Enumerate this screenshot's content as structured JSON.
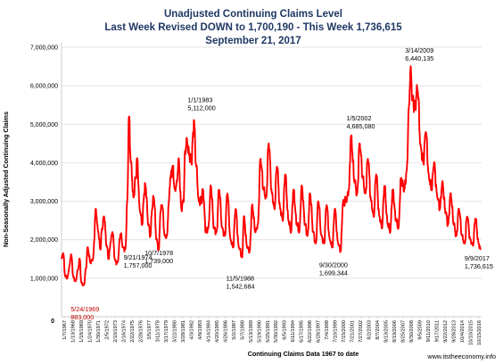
{
  "chart_data": {
    "type": "line",
    "title_lines": [
      "Unadjusted Continuing Claims Level",
      "Last Week Revised DOWN to 1,700,190 - This Week 1,736,615",
      "September 21, 2017"
    ],
    "ylabel": "Non-Seasonally Adjusted Continuing Claims",
    "xlabel": "Continuing Claims Data 1967 to date",
    "ylim": [
      0,
      7000000
    ],
    "xlim": [
      1967.0,
      2017.8
    ],
    "y_ticks": [
      "0",
      "1,000,000",
      "2,000,000",
      "3,000,000",
      "4,000,000",
      "5,000,000",
      "6,000,000",
      "7,000,000"
    ],
    "x_ticks": [
      "1/7/1967",
      "1/13/1968",
      "1/18/1969",
      "1/24/1970",
      "1/30/1971",
      "2/5/1972",
      "2/10/1973",
      "2/16/1974",
      "2/22/1975",
      "2/28/1976",
      "3/5/1977",
      "3/11/1978",
      "3/17/1979",
      "3/22/1980",
      "3/28/1981",
      "4/3/1982",
      "4/9/1983",
      "4/14/1984",
      "4/20/1985",
      "4/26/1986",
      "5/2/1987",
      "5/7/1988",
      "5/13/1989",
      "5/19/1990",
      "5/25/1991",
      "5/30/1992",
      "6/5/1993",
      "6/11/1994",
      "6/17/1995",
      "6/22/1996",
      "6/28/1997",
      "7/4/1998",
      "7/10/1999",
      "7/15/2000",
      "7/21/2001",
      "7/27/2002",
      "8/2/2003",
      "8/7/2004",
      "8/13/2005",
      "8/19/2006",
      "8/25/2007",
      "8/30/2008",
      "9/5/2009",
      "9/11/2010",
      "9/17/2011",
      "9/22/2012",
      "9/28/2013",
      "10/4/2014",
      "10/10/2015",
      "10/15/2016"
    ],
    "grid": true,
    "legend": "none",
    "series_color": "#ff0000",
    "series": [
      {
        "values": [
          [
            1967.0,
            1500000
          ],
          [
            1967.2,
            1650000
          ],
          [
            1967.45,
            1050000
          ],
          [
            1967.7,
            1000000
          ],
          [
            1967.95,
            1300000
          ],
          [
            1968.15,
            1620000
          ],
          [
            1968.45,
            1020000
          ],
          [
            1968.7,
            920000
          ],
          [
            1968.95,
            1200000
          ],
          [
            1969.2,
            1500000
          ],
          [
            1969.4,
            883000
          ],
          [
            1969.7,
            820000
          ],
          [
            1969.95,
            1250000
          ],
          [
            1970.15,
            1800000
          ],
          [
            1970.5,
            1400000
          ],
          [
            1970.8,
            1500000
          ],
          [
            1971.15,
            2800000
          ],
          [
            1971.4,
            2250000
          ],
          [
            1971.7,
            1750000
          ],
          [
            1971.9,
            2300000
          ],
          [
            1972.15,
            2600000
          ],
          [
            1972.45,
            1850000
          ],
          [
            1972.7,
            1500000
          ],
          [
            1972.95,
            1950000
          ],
          [
            1973.15,
            2200000
          ],
          [
            1973.5,
            1450000
          ],
          [
            1973.75,
            1400000
          ],
          [
            1974.15,
            2150000
          ],
          [
            1974.45,
            1800000
          ],
          [
            1974.72,
            1757000
          ],
          [
            1974.95,
            3000000
          ],
          [
            1975.15,
            5200000
          ],
          [
            1975.4,
            4000000
          ],
          [
            1975.7,
            3100000
          ],
          [
            1975.95,
            3600000
          ],
          [
            1976.15,
            4100000
          ],
          [
            1976.45,
            2800000
          ],
          [
            1976.75,
            2400000
          ],
          [
            1977.0,
            3200000
          ],
          [
            1977.15,
            3400000
          ],
          [
            1977.5,
            2400000
          ],
          [
            1977.75,
            2100000
          ],
          [
            1977.95,
            2800000
          ],
          [
            1978.15,
            3100000
          ],
          [
            1978.5,
            2000000
          ],
          [
            1978.77,
            1739000
          ],
          [
            1978.95,
            2700000
          ],
          [
            1979.15,
            2900000
          ],
          [
            1979.5,
            2100000
          ],
          [
            1979.75,
            2100000
          ],
          [
            1979.95,
            2900000
          ],
          [
            1980.15,
            3600000
          ],
          [
            1980.45,
            3900000
          ],
          [
            1980.7,
            3300000
          ],
          [
            1980.95,
            3500000
          ],
          [
            1981.15,
            4100000
          ],
          [
            1981.5,
            2800000
          ],
          [
            1981.75,
            3000000
          ],
          [
            1981.95,
            4300000
          ],
          [
            1982.15,
            4600000
          ],
          [
            1982.45,
            4200000
          ],
          [
            1982.7,
            4000000
          ],
          [
            1982.95,
            4800000
          ],
          [
            1983.0,
            5112000
          ],
          [
            1983.3,
            3900000
          ],
          [
            1983.6,
            3000000
          ],
          [
            1983.9,
            3000000
          ],
          [
            1984.1,
            3300000
          ],
          [
            1984.45,
            2200000
          ],
          [
            1984.75,
            2300000
          ],
          [
            1985.05,
            3400000
          ],
          [
            1985.45,
            2300000
          ],
          [
            1985.75,
            2200000
          ],
          [
            1986.05,
            3300000
          ],
          [
            1986.45,
            2300000
          ],
          [
            1986.75,
            2100000
          ],
          [
            1987.05,
            3200000
          ],
          [
            1987.45,
            2000000
          ],
          [
            1987.75,
            1800000
          ],
          [
            1988.05,
            2800000
          ],
          [
            1988.45,
            1800000
          ],
          [
            1988.85,
            1542684
          ],
          [
            1989.05,
            2600000
          ],
          [
            1989.45,
            1800000
          ],
          [
            1989.75,
            1700000
          ],
          [
            1990.05,
            2900000
          ],
          [
            1990.45,
            2200000
          ],
          [
            1990.75,
            2400000
          ],
          [
            1991.05,
            4100000
          ],
          [
            1991.45,
            3300000
          ],
          [
            1991.75,
            3100000
          ],
          [
            1992.05,
            4500000
          ],
          [
            1992.45,
            3200000
          ],
          [
            1992.75,
            2800000
          ],
          [
            1993.05,
            3900000
          ],
          [
            1993.45,
            2800000
          ],
          [
            1993.75,
            2500000
          ],
          [
            1994.05,
            3700000
          ],
          [
            1994.45,
            2500000
          ],
          [
            1994.75,
            2200000
          ],
          [
            1995.05,
            3300000
          ],
          [
            1995.45,
            2400000
          ],
          [
            1995.75,
            2200000
          ],
          [
            1996.05,
            3400000
          ],
          [
            1996.45,
            2400000
          ],
          [
            1996.75,
            2100000
          ],
          [
            1997.05,
            3200000
          ],
          [
            1997.45,
            2200000
          ],
          [
            1997.75,
            1900000
          ],
          [
            1998.05,
            3000000
          ],
          [
            1998.45,
            2100000
          ],
          [
            1998.75,
            1900000
          ],
          [
            1999.05,
            2900000
          ],
          [
            1999.45,
            2000000
          ],
          [
            1999.75,
            1800000
          ],
          [
            2000.05,
            2800000
          ],
          [
            2000.45,
            1900000
          ],
          [
            2000.75,
            1699344
          ],
          [
            2001.05,
            3000000
          ],
          [
            2001.45,
            3000000
          ],
          [
            2001.75,
            3300000
          ],
          [
            2002.0,
            4685080
          ],
          [
            2002.45,
            3500000
          ],
          [
            2002.75,
            3200000
          ],
          [
            2003.05,
            4500000
          ],
          [
            2003.45,
            3600000
          ],
          [
            2003.75,
            3200000
          ],
          [
            2004.05,
            4100000
          ],
          [
            2004.45,
            3000000
          ],
          [
            2004.75,
            2600000
          ],
          [
            2005.05,
            3700000
          ],
          [
            2005.45,
            2600000
          ],
          [
            2005.75,
            2300000
          ],
          [
            2006.05,
            3400000
          ],
          [
            2006.45,
            2400000
          ],
          [
            2006.75,
            2200000
          ],
          [
            2007.05,
            3300000
          ],
          [
            2007.45,
            2500000
          ],
          [
            2007.75,
            2300000
          ],
          [
            2008.05,
            3600000
          ],
          [
            2008.45,
            3300000
          ],
          [
            2008.75,
            3800000
          ],
          [
            2009.0,
            5400000
          ],
          [
            2009.2,
            6440135
          ],
          [
            2009.45,
            5700000
          ],
          [
            2009.75,
            5500000
          ],
          [
            2010.05,
            5900000
          ],
          [
            2010.45,
            4400000
          ],
          [
            2010.75,
            4000000
          ],
          [
            2011.05,
            4800000
          ],
          [
            2011.45,
            3600000
          ],
          [
            2011.75,
            3300000
          ],
          [
            2012.05,
            4000000
          ],
          [
            2012.45,
            3100000
          ],
          [
            2012.75,
            2800000
          ],
          [
            2013.05,
            3500000
          ],
          [
            2013.45,
            2700000
          ],
          [
            2013.75,
            2400000
          ],
          [
            2014.05,
            3200000
          ],
          [
            2014.45,
            2400000
          ],
          [
            2014.75,
            2100000
          ],
          [
            2015.05,
            2800000
          ],
          [
            2015.45,
            2100000
          ],
          [
            2015.75,
            1900000
          ],
          [
            2016.05,
            2600000
          ],
          [
            2016.45,
            2000000
          ],
          [
            2016.75,
            1850000
          ],
          [
            2017.05,
            2550000
          ],
          [
            2017.45,
            1900000
          ],
          [
            2017.68,
            1736615
          ]
        ]
      }
    ],
    "annotations": [
      {
        "date": "5/24/1969",
        "value": "883,000",
        "x": 1969.4,
        "y": 883000,
        "color": "#c00000"
      },
      {
        "date": "9/21/1974",
        "value": "1,757,000",
        "x": 1974.72,
        "y": 1757000,
        "color": "#000000"
      },
      {
        "date": "10/7/1978",
        "value": "1,739,000",
        "x": 1978.77,
        "y": 1739000,
        "color": "#000000"
      },
      {
        "date": "1/1/1983",
        "value": "5,112,000",
        "x": 1983.0,
        "y": 5112000,
        "color": "#000000"
      },
      {
        "date": "11/5/1988",
        "value": "1,542,684",
        "x": 1988.85,
        "y": 1542684,
        "color": "#000000"
      },
      {
        "date": "9/30/2000",
        "value": "1,699,344",
        "x": 2000.75,
        "y": 1699344,
        "color": "#000000"
      },
      {
        "date": "1/5/2002",
        "value": "4,685,080",
        "x": 2002.0,
        "y": 4685080,
        "color": "#000000"
      },
      {
        "date": "3/14/2009",
        "value": "6,440,135",
        "x": 2009.2,
        "y": 6440135,
        "color": "#000000"
      },
      {
        "date": "9/9/2017",
        "value": "1,736,615",
        "x": 2017.68,
        "y": 1736615,
        "color": "#000000"
      }
    ],
    "extra_labels": [
      "0"
    ]
  },
  "credit": "www.itstheeconomy.info"
}
